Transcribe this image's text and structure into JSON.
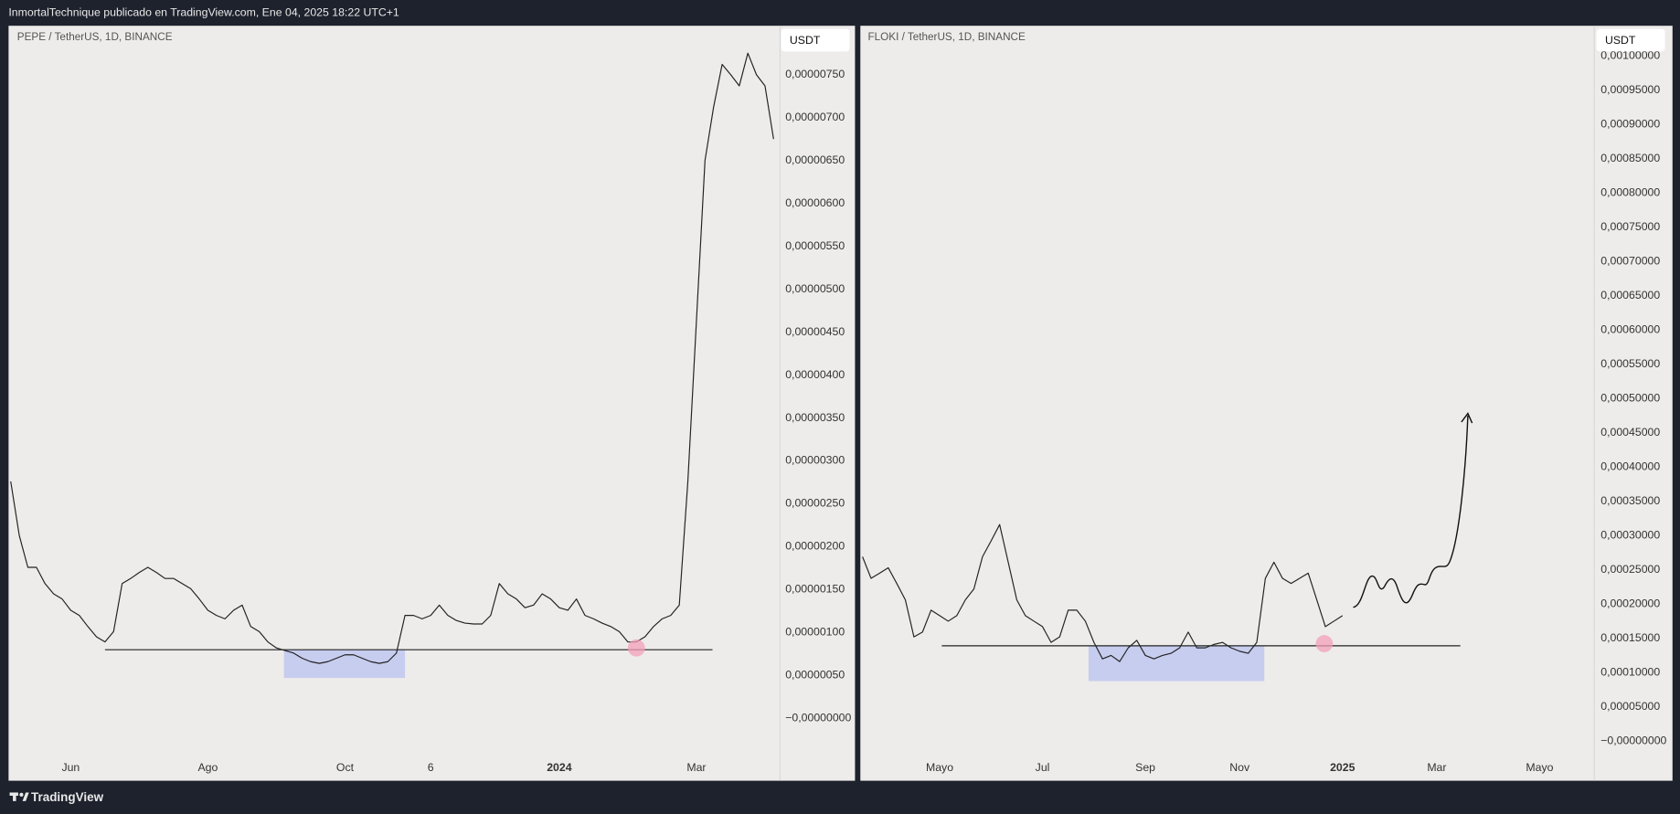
{
  "header": {
    "title": "InmortalTechnique publicado en TradingView.com, Ene 04, 2025 18:22 UTC+1"
  },
  "footer": {
    "brand": "TradingView"
  },
  "chart_data": [
    {
      "type": "line",
      "title": "PEPE / TetherUS, 1D, BINANCE",
      "currency_label": "USDT",
      "color": "#222222",
      "categories": [
        null,
        null,
        null,
        null,
        null,
        null,
        null,
        "Jun",
        null,
        null,
        null,
        null,
        null,
        null,
        null,
        null,
        null,
        null,
        null,
        null,
        null,
        null,
        null,
        "Ago",
        null,
        null,
        null,
        null,
        null,
        null,
        null,
        null,
        null,
        null,
        null,
        null,
        null,
        null,
        null,
        "Oct",
        null,
        null,
        null,
        null,
        null,
        null,
        null,
        null,
        null,
        "6",
        null,
        null,
        null,
        null,
        null,
        null,
        null,
        null,
        null,
        null,
        null,
        null,
        null,
        null,
        "2024",
        null,
        null,
        null,
        null,
        null,
        null,
        null,
        null,
        null,
        null,
        null,
        null,
        null,
        null,
        null,
        "Mar",
        null,
        null,
        null,
        null,
        null,
        null,
        null,
        null,
        null
      ],
      "values": [
        2.76e-06,
        2.13e-06,
        1.76e-06,
        1.76e-06,
        1.57e-06,
        1.45e-06,
        1.39e-06,
        1.26e-06,
        1.2e-06,
        1.07e-06,
        9.5e-07,
        8.9e-07,
        1.01e-06,
        1.57e-06,
        1.63e-06,
        1.7e-06,
        1.76e-06,
        1.7e-06,
        1.63e-06,
        1.63e-06,
        1.57e-06,
        1.51e-06,
        1.39e-06,
        1.26e-06,
        1.2e-06,
        1.16e-06,
        1.26e-06,
        1.32e-06,
        1.07e-06,
        1.01e-06,
        8.9e-07,
        8.2e-07,
        7.9e-07,
        7.6e-07,
        7e-07,
        6.6e-07,
        6.4e-07,
        6.6e-07,
        7e-07,
        7.4e-07,
        7.4e-07,
        7e-07,
        6.6e-07,
        6.4e-07,
        6.6e-07,
        7.6e-07,
        1.2e-06,
        1.2e-06,
        1.16e-06,
        1.2e-06,
        1.32e-06,
        1.2e-06,
        1.14e-06,
        1.11e-06,
        1.1e-06,
        1.1e-06,
        1.2e-06,
        1.57e-06,
        1.45e-06,
        1.39e-06,
        1.29e-06,
        1.32e-06,
        1.45e-06,
        1.39e-06,
        1.29e-06,
        1.26e-06,
        1.39e-06,
        1.2e-06,
        1.16e-06,
        1.11e-06,
        1.07e-06,
        1.01e-06,
        8.9e-07,
        8.9e-07,
        9.5e-07,
        1.07e-06,
        1.16e-06,
        1.2e-06,
        1.32e-06,
        2.76e-06,
        4.63e-06,
        6.5e-06,
        7.12e-06,
        7.62e-06,
        7.5e-06,
        7.37e-06,
        7.75e-06,
        7.5e-06,
        7.37e-06,
        6.75e-06
      ],
      "support_level": 8e-07,
      "ylim": [
        -4.4e-07,
        8.07e-06
      ],
      "yticks": [
        {
          "value": 0,
          "label": "−0,00000000"
        },
        {
          "value": 5e-07,
          "label": "0,00000050"
        },
        {
          "value": 1e-06,
          "label": "0,00000100"
        },
        {
          "value": 1.5e-06,
          "label": "0,00000150"
        },
        {
          "value": 2e-06,
          "label": "0,00000200"
        },
        {
          "value": 2.5e-06,
          "label": "0,00000250"
        },
        {
          "value": 3e-06,
          "label": "0,00000300"
        },
        {
          "value": 3.5e-06,
          "label": "0,00000350"
        },
        {
          "value": 4e-06,
          "label": "0,00000400"
        },
        {
          "value": 4.5e-06,
          "label": "0,00000450"
        },
        {
          "value": 5e-06,
          "label": "0,00000500"
        },
        {
          "value": 5.5e-06,
          "label": "0,00000550"
        },
        {
          "value": 6e-06,
          "label": "0,00000600"
        },
        {
          "value": 6.5e-06,
          "label": "0,00000650"
        },
        {
          "value": 7e-06,
          "label": "0,00000700"
        },
        {
          "value": 7.5e-06,
          "label": "0,00000750"
        }
      ],
      "grid": false
    },
    {
      "type": "line",
      "title": "FLOKI / TetherUS, 1D, BINANCE",
      "currency_label": "USDT",
      "color": "#222222",
      "categories": [
        null,
        null,
        null,
        null,
        null,
        null,
        null,
        null,
        null,
        "Mayo",
        null,
        null,
        null,
        null,
        null,
        null,
        null,
        null,
        null,
        null,
        null,
        "Jul",
        null,
        null,
        null,
        null,
        null,
        null,
        null,
        null,
        null,
        null,
        null,
        "Sep",
        null,
        null,
        null,
        null,
        null,
        null,
        null,
        null,
        null,
        null,
        "Nov",
        null,
        null,
        null,
        null,
        null,
        null,
        null,
        null,
        null,
        null,
        null,
        "2025",
        null,
        null,
        null,
        null,
        null,
        null,
        null,
        null,
        null,
        null,
        "Mar",
        null,
        null,
        null,
        null,
        null,
        null,
        null,
        null,
        null,
        null,
        null,
        "Mayo",
        null,
        null,
        null,
        null,
        null,
        null
      ],
      "values": [
        0.000269,
        0.0002375,
        0.000245,
        0.000253,
        0.00023,
        0.000206,
        0.000152,
        0.000159,
        0.000191,
        0.000183,
        0.000175,
        0.000183,
        0.000206,
        0.000222,
        0.000269,
        0.000292,
        0.000316,
        0.000261,
        0.000206,
        0.000183,
        0.000175,
        0.000167,
        0.000144,
        0.000152,
        0.000191,
        0.000191,
        0.000175,
        0.000144,
        0.00012,
        0.000125,
        0.000116,
        0.000136,
        0.000147,
        0.000125,
        0.00012,
        0.000125,
        0.000128,
        0.000136,
        0.000159,
        0.000136,
        0.000136,
        0.000141,
        0.000144,
        0.000136,
        0.000131,
        0.000128,
        0.000144,
        0.0002375,
        0.000261,
        0.0002375,
        0.00023,
        0.0002375,
        0.000245,
        0.000206,
        0.000167,
        0.000175,
        0.000183,
        null,
        null,
        null,
        null,
        null,
        null,
        null,
        null,
        null,
        null,
        null,
        null,
        null,
        null,
        null,
        null,
        null,
        null,
        null,
        null,
        null,
        null,
        null,
        null,
        null,
        null,
        null,
        null,
        null
      ],
      "support_level": 0.000139,
      "ylim": [
        -2.2e-05,
        0.001044
      ],
      "yticks": [
        {
          "value": 0,
          "label": "−0,00000000"
        },
        {
          "value": 5e-05,
          "label": "0,00005000"
        },
        {
          "value": 0.0001,
          "label": "0,00010000"
        },
        {
          "value": 0.00015,
          "label": "0,00015000"
        },
        {
          "value": 0.0002,
          "label": "0,00020000"
        },
        {
          "value": 0.00025,
          "label": "0,00025000"
        },
        {
          "value": 0.0003,
          "label": "0,00030000"
        },
        {
          "value": 0.00035,
          "label": "0,00035000"
        },
        {
          "value": 0.0004,
          "label": "0,00040000"
        },
        {
          "value": 0.00045,
          "label": "0,00045000"
        },
        {
          "value": 0.0005,
          "label": "0,00050000"
        },
        {
          "value": 0.00055,
          "label": "0,00055000"
        },
        {
          "value": 0.0006,
          "label": "0,00060000"
        },
        {
          "value": 0.00065,
          "label": "0,00065000"
        },
        {
          "value": 0.0007,
          "label": "0,00070000"
        },
        {
          "value": 0.00075,
          "label": "0,00075000"
        },
        {
          "value": 0.0008,
          "label": "0,00080000"
        },
        {
          "value": 0.00085,
          "label": "0,00085000"
        },
        {
          "value": 0.0009,
          "label": "0,00090000"
        },
        {
          "value": 0.00095,
          "label": "0,00095000"
        },
        {
          "value": 0.001,
          "label": "0,00100000"
        }
      ],
      "grid": false
    }
  ]
}
